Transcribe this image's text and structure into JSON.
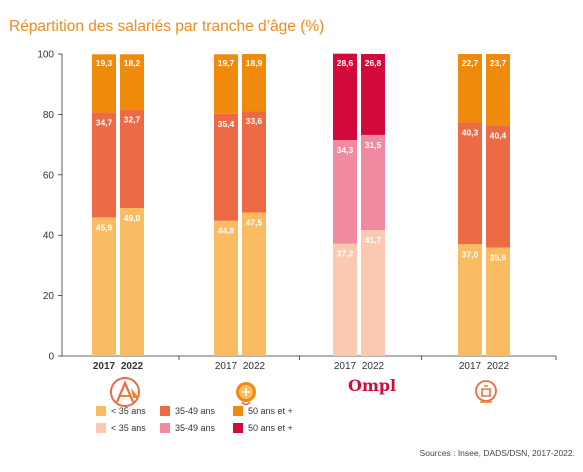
{
  "title": "Répartition des salariés par tranche d’âge (%)",
  "source": "Sources : Insee, DADS/DSN, 2017-2022.",
  "colors": {
    "orange_light": "#f9bc62",
    "orange_mid": "#ec6b45",
    "orange_dark": "#f08a0c",
    "pink_light": "#fbc9b0",
    "pink_mid": "#ef8aa0",
    "red_dark": "#d10a3a",
    "axis": "#333333",
    "gridline": "#cccccc"
  },
  "logos": [
    {
      "icon": "architects-logo-icon"
    },
    {
      "icon": "shield-logo-icon"
    },
    {
      "icon": "ompl-logo-icon",
      "text": "Ompl"
    },
    {
      "icon": "doctor-logo-icon"
    }
  ],
  "legend": {
    "row1": [
      {
        "label": "< 35 ans",
        "color": "#f9bc62"
      },
      {
        "label": "35-49 ans",
        "color": "#ec6b45"
      },
      {
        "label": "50 ans et +",
        "color": "#f08a0c"
      }
    ],
    "row2": [
      {
        "label": "< 35 ans",
        "color": "#fbc9b0"
      },
      {
        "label": "35-49 ans",
        "color": "#ef8aa0"
      },
      {
        "label": "50 ans et +",
        "color": "#d10a3a"
      }
    ]
  },
  "chart_data": {
    "type": "bar",
    "stacked": true,
    "ylim": [
      0,
      100
    ],
    "yticks": [
      0,
      20,
      40,
      60,
      80,
      100
    ],
    "xlabel": "",
    "ylabel": "",
    "groups": [
      {
        "logo": "architects-logo-icon",
        "palette": "orange",
        "bold_ticks": true,
        "bars": [
          {
            "year": "2017",
            "values": [
              45.9,
              34.7,
              19.3
            ],
            "labels": [
              "45,9",
              "34,7",
              "19,3"
            ]
          },
          {
            "year": "2022",
            "values": [
              49.0,
              32.7,
              18.2
            ],
            "labels": [
              "49,0",
              "32,7",
              "18,2"
            ]
          }
        ]
      },
      {
        "logo": "shield-logo-icon",
        "palette": "orange",
        "bold_ticks": false,
        "bars": [
          {
            "year": "2017",
            "values": [
              44.8,
              35.4,
              19.7
            ],
            "labels": [
              "44,8",
              "35,4",
              "19,7"
            ]
          },
          {
            "year": "2022",
            "values": [
              47.5,
              33.6,
              18.9
            ],
            "labels": [
              "47,5",
              "33,6",
              "18,9"
            ]
          }
        ]
      },
      {
        "logo": "ompl-logo-icon",
        "palette": "pink",
        "bold_ticks": false,
        "bars": [
          {
            "year": "2017",
            "values": [
              37.2,
              34.3,
              28.6
            ],
            "labels": [
              "37,2",
              "34,3",
              "28,6"
            ]
          },
          {
            "year": "2022",
            "values": [
              41.7,
              31.5,
              26.8
            ],
            "labels": [
              "41,7",
              "31,5",
              "26,8"
            ]
          }
        ]
      },
      {
        "logo": "doctor-logo-icon",
        "palette": "orange",
        "bold_ticks": false,
        "bars": [
          {
            "year": "2017",
            "values": [
              37.0,
              40.3,
              22.7
            ],
            "labels": [
              "37,0",
              "40,3",
              "22,7"
            ]
          },
          {
            "year": "2022",
            "values": [
              35.9,
              40.4,
              23.7
            ],
            "labels": [
              "35,9",
              "40,4",
              "23,7"
            ]
          }
        ]
      }
    ],
    "series": [
      {
        "name": "< 35 ans"
      },
      {
        "name": "35-49 ans"
      },
      {
        "name": "50 ans et +"
      }
    ]
  }
}
